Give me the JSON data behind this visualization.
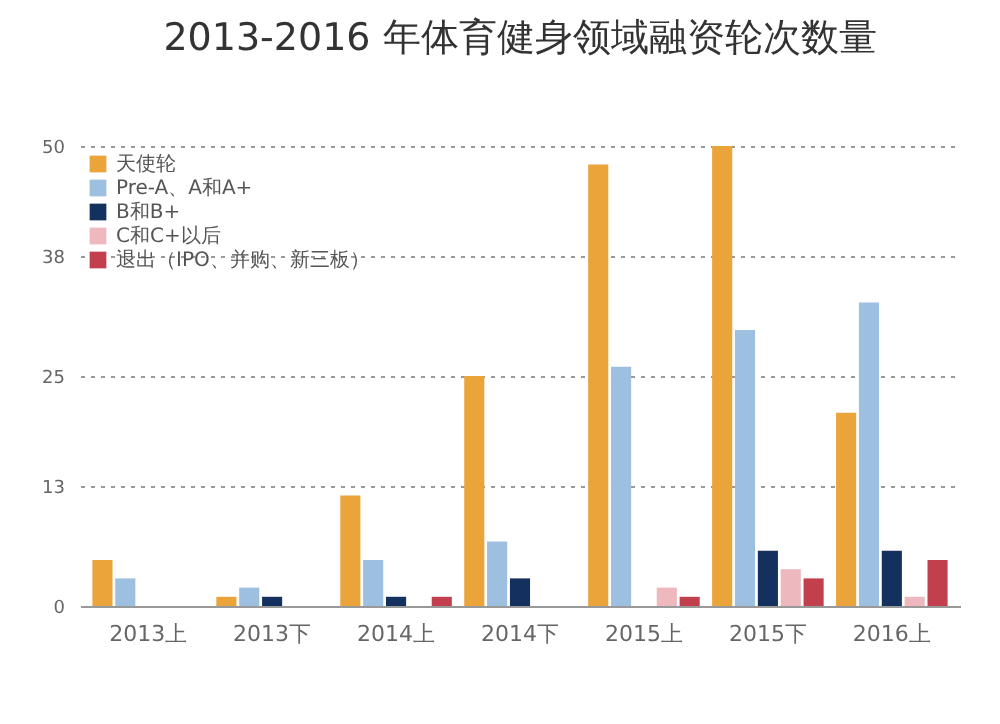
{
  "chart_data": {
    "type": "bar",
    "title": "2013-2016 年体育健身领域融资轮次数量",
    "categories": [
      "2013上",
      "2013下",
      "2014上",
      "2014下",
      "2015上",
      "2015下",
      "2016上"
    ],
    "series": [
      {
        "name": "天使轮",
        "color": "#eaa43a",
        "values": [
          5,
          1,
          12,
          25,
          48,
          50,
          21
        ]
      },
      {
        "name": "Pre-A、A和A+",
        "color": "#9dbfe0",
        "values": [
          3,
          2,
          5,
          7,
          26,
          30,
          33
        ]
      },
      {
        "name": "B和B+",
        "color": "#13305f",
        "values": [
          null,
          1,
          1,
          3,
          null,
          6,
          6
        ]
      },
      {
        "name": "C和C+以后",
        "color": "#eeb8bf",
        "values": [
          null,
          null,
          null,
          null,
          2,
          4,
          1
        ]
      },
      {
        "name": "退出（IPO、并购、新三板）",
        "color": "#c2404d",
        "values": [
          null,
          null,
          1,
          null,
          1,
          3,
          5
        ]
      }
    ],
    "ylim": [
      0,
      50
    ],
    "yticks": [
      0,
      13,
      25,
      38,
      50
    ],
    "grid": "y",
    "legend": "top left"
  }
}
